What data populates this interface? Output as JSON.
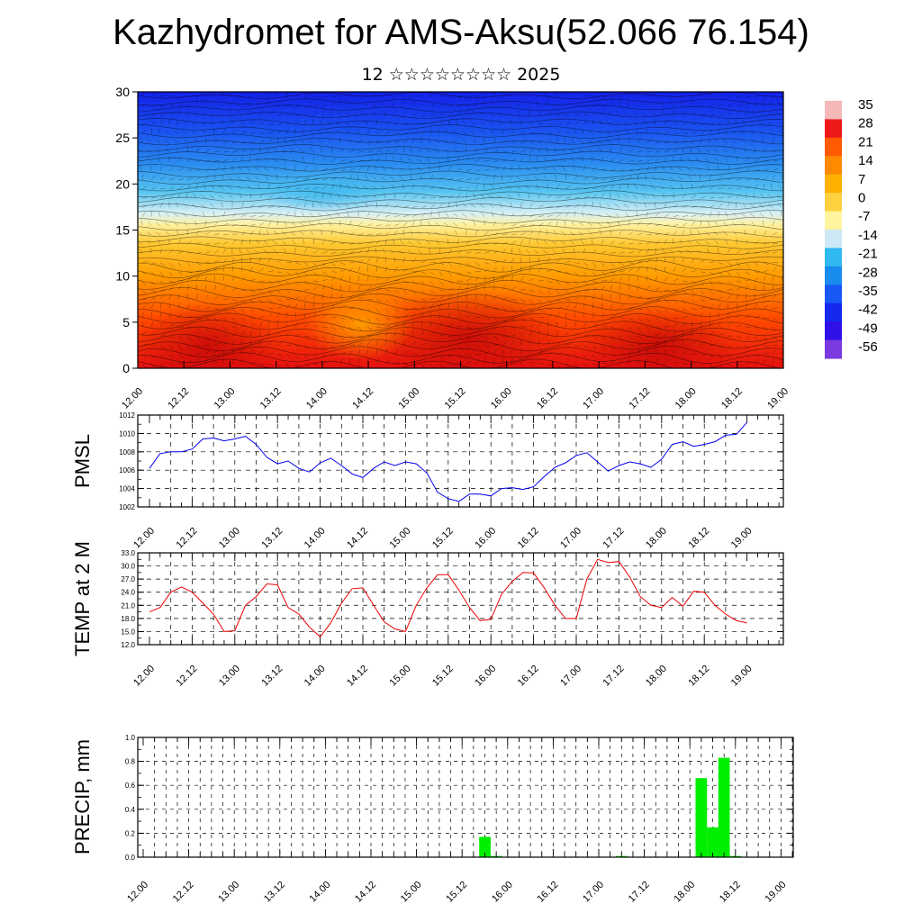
{
  "title": "Kazhydromet for AMS-Aksu(52.066 76.154)",
  "subtitle": "12 ☆☆☆☆☆☆☆☆ 2025",
  "x_ticks": [
    "12.00",
    "12.12",
    "13.00",
    "13.12",
    "14.00",
    "14.12",
    "15.00",
    "15.12",
    "16.00",
    "16.12",
    "17.00",
    "17.12",
    "18.00",
    "18.12",
    "19.00"
  ],
  "chart_data": [
    {
      "type": "heatmap",
      "title": "",
      "xlabel": "",
      "ylabel": "",
      "x_range": [
        "12.00",
        "19.00"
      ],
      "ylim": [
        0,
        30
      ],
      "y_ticks": [
        0,
        5,
        10,
        15,
        20,
        25,
        30
      ],
      "colorbar_labels": [
        35,
        28,
        21,
        14,
        7,
        0,
        -7,
        -14,
        -21,
        -28,
        -35,
        -42,
        -49,
        -56
      ],
      "colorbar_colors": [
        "#f5b8b8",
        "#ee1818",
        "#ff5a00",
        "#ff8a00",
        "#ffb000",
        "#ffd040",
        "#fff5a0",
        "#cce9f5",
        "#30b8f0",
        "#1a8cf0",
        "#1858f5",
        "#1428ee",
        "#3010e8",
        "#7a3ae0"
      ],
      "overlay": "wind streamlines / barbs"
    },
    {
      "type": "line",
      "ylabel": "PMSL",
      "xlabel": "",
      "ylim": [
        1002,
        1012
      ],
      "y_ticks": [
        1002,
        1004,
        1006,
        1008,
        1010,
        1012
      ],
      "line_color": "#0000ee",
      "grid": true,
      "series": [
        {
          "values": [
            1006.2,
            1007.8,
            1008.0,
            1008.0,
            1008.3,
            1009.4,
            1009.5,
            1009.2,
            1009.4,
            1009.7,
            1008.8,
            1007.4,
            1006.7,
            1007.0,
            1006.2,
            1005.8,
            1006.8,
            1007.3,
            1006.5,
            1005.6,
            1005.2,
            1006.2,
            1006.9,
            1006.5,
            1006.9,
            1006.7,
            1005.7,
            1003.6,
            1002.9,
            1002.6,
            1003.4,
            1003.4,
            1003.2,
            1004.0,
            1004.1,
            1003.9,
            1004.2,
            1005.3,
            1006.3,
            1006.8,
            1007.6,
            1007.9,
            1006.9,
            1005.9,
            1006.5,
            1006.9,
            1006.7,
            1006.3,
            1007.2,
            1008.8,
            1009.1,
            1008.6,
            1008.8,
            1009.1,
            1009.8,
            1009.9,
            1011.2
          ]
        }
      ]
    },
    {
      "type": "line",
      "ylabel": "TEMP at 2 M",
      "xlabel": "",
      "ylim": [
        12,
        33
      ],
      "y_ticks": [
        12,
        15,
        18,
        21,
        24,
        27,
        30,
        33
      ],
      "y_tick_labels": [
        "12.0",
        "15.0",
        "18.0",
        "21.0",
        "24.0",
        "27.0",
        "30.0",
        "33.0"
      ],
      "line_color": "#ee0000",
      "grid": true,
      "series": [
        {
          "values": [
            19.5,
            20.5,
            24.0,
            25.2,
            24.0,
            21.5,
            19.0,
            15.0,
            15.2,
            21.0,
            23.0,
            25.9,
            25.7,
            20.5,
            19.0,
            16.0,
            13.8,
            17.0,
            21.5,
            24.8,
            25.0,
            21.0,
            17.2,
            15.6,
            15.0,
            21.0,
            25.0,
            28.0,
            28.0,
            24.5,
            20.5,
            17.5,
            17.8,
            23.5,
            26.5,
            28.5,
            28.4,
            25.0,
            21.0,
            18.0,
            18.0,
            27.0,
            31.5,
            30.8,
            31.0,
            27.5,
            23.0,
            21.0,
            20.5,
            22.8,
            20.8,
            24.2,
            24.0,
            21.0,
            19.0,
            17.5,
            17.0
          ]
        }
      ]
    },
    {
      "type": "bar",
      "ylabel": "PRECIP, mm",
      "xlabel": "",
      "ylim": [
        0,
        1.0
      ],
      "y_ticks": [
        0.0,
        0.2,
        0.4,
        0.6,
        0.8,
        1.0
      ],
      "y_tick_labels": [
        "0.0",
        "0.2",
        "0.4",
        "0.6",
        "0.8",
        "1.0"
      ],
      "bar_color": "#00ee00",
      "grid": true,
      "x": [
        "15.18",
        "15.21",
        "17.06",
        "18.03",
        "18.06",
        "18.09",
        "18.12"
      ],
      "values": [
        0.17,
        0.01,
        0.01,
        0.66,
        0.25,
        0.83,
        0.01
      ]
    }
  ]
}
